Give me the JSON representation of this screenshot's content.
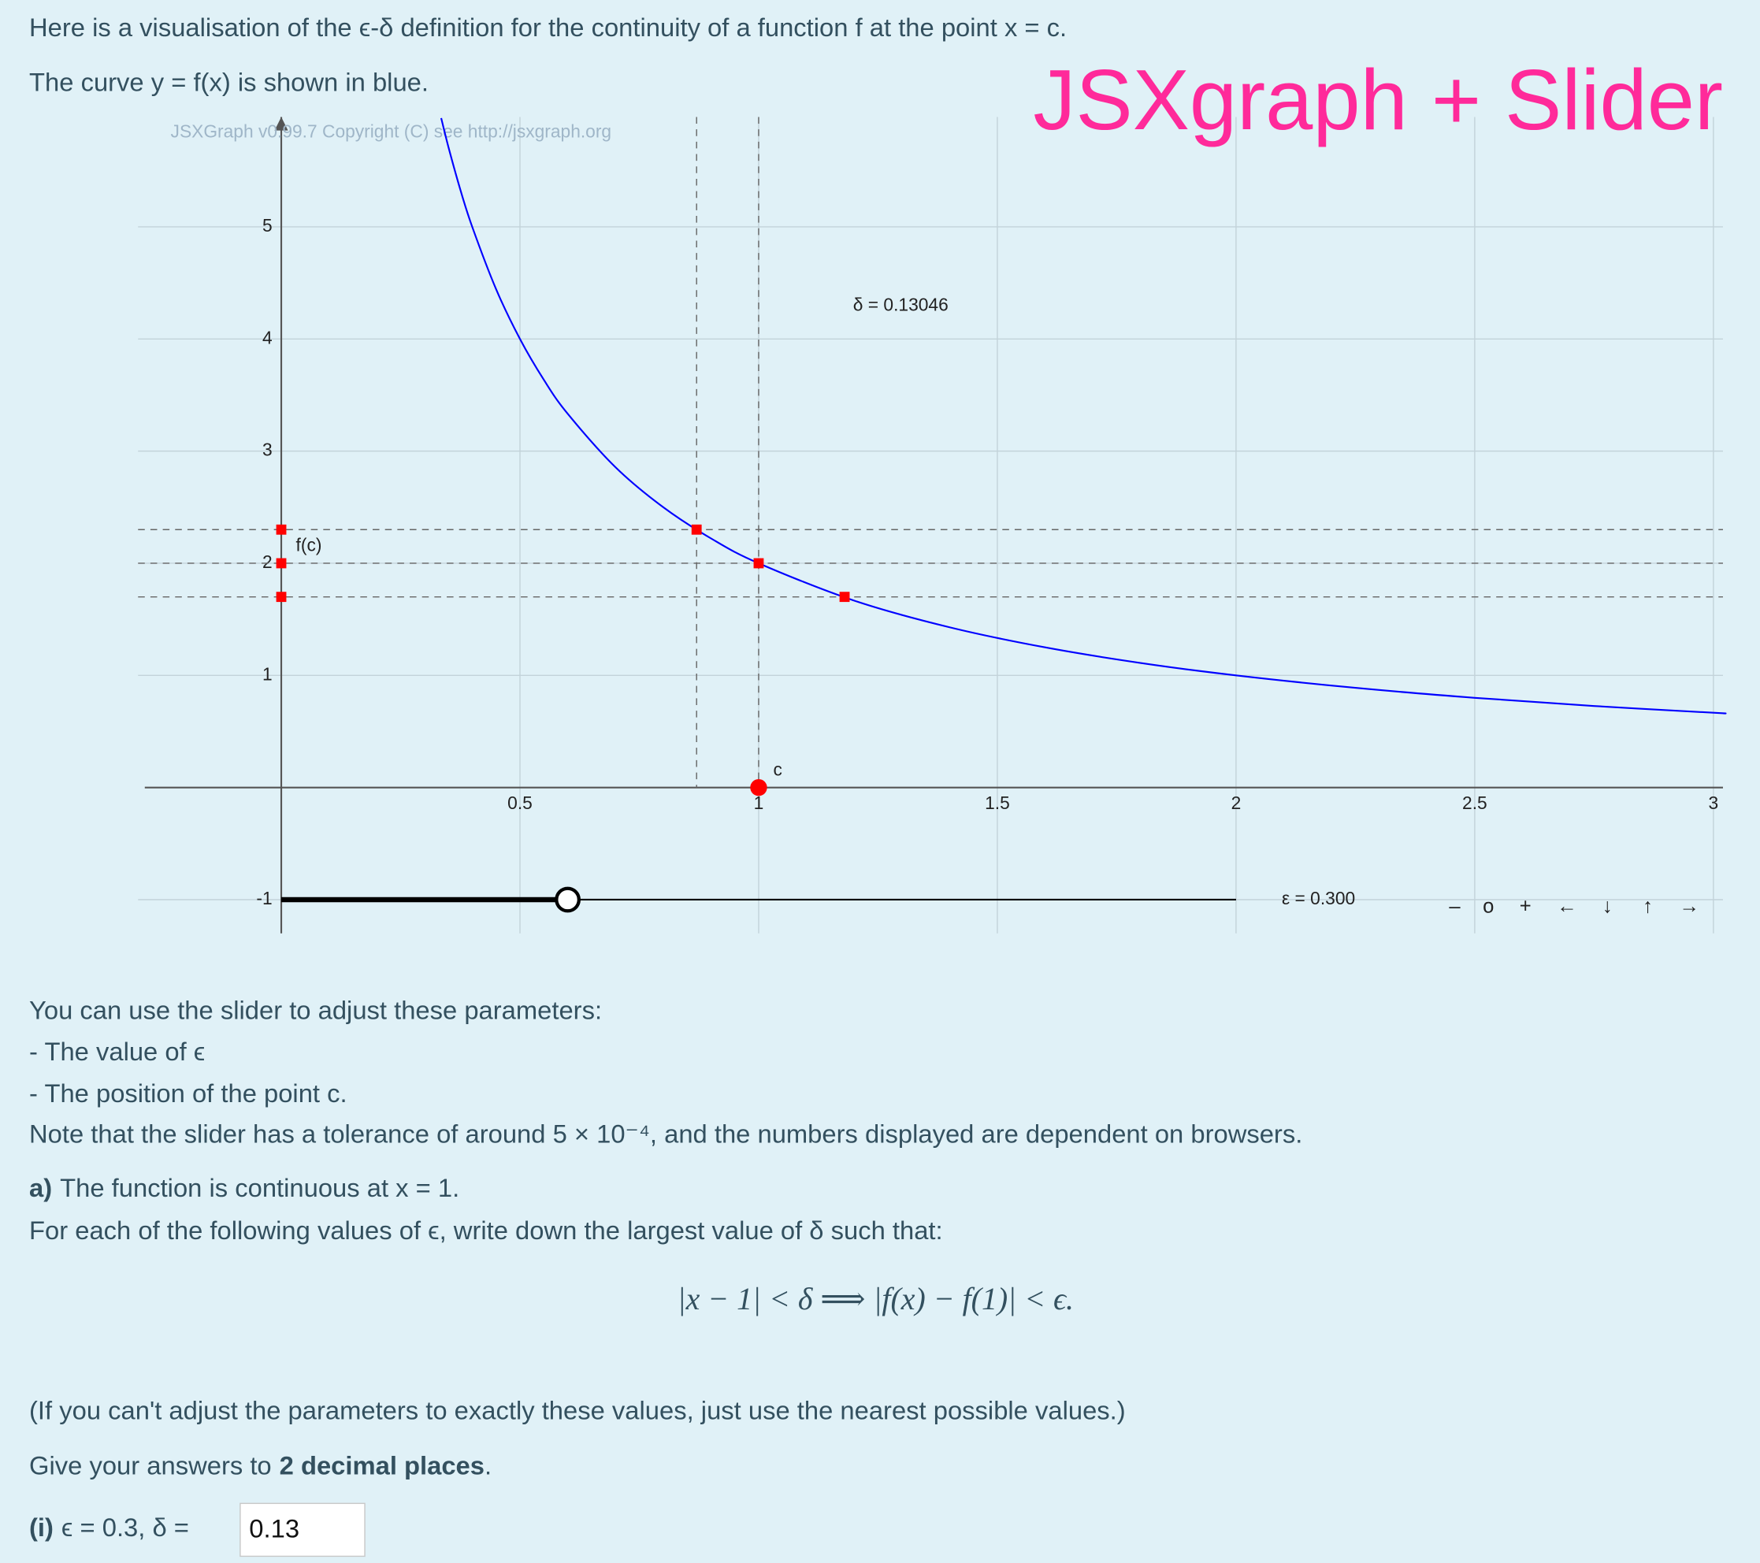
{
  "intro": [
    "Here is a visualisation of the ϵ-δ definition for the continuity of a function f at the point x = c.",
    "The curve y = f(x) is shown in blue."
  ],
  "overlay_title": "JSXgraph + Slider",
  "chart_data": {
    "type": "function-plot",
    "credit": "JSXGraph v0.99.7 Copyright (C) see http://jsxgraph.org",
    "xlim": [
      -0.3,
      3.02
    ],
    "ylim": [
      -1.3,
      5.98
    ],
    "xticks": [
      0.5,
      1,
      1.5,
      2,
      2.5,
      3
    ],
    "yticks": [
      -1,
      1,
      2,
      3,
      4,
      5
    ],
    "grid": true,
    "curve": {
      "color": "#0000ff",
      "x": [
        0.335,
        0.35,
        0.375,
        0.4,
        0.45,
        0.5,
        0.55,
        0.6,
        0.7,
        0.8,
        0.9,
        1,
        1.2,
        1.4,
        1.6,
        1.8,
        2,
        2.25,
        2.5,
        2.75,
        3,
        3.02
      ],
      "y": [
        5.97,
        5.714,
        5.333,
        5,
        4.444,
        4,
        3.636,
        3.333,
        2.857,
        2.5,
        2.222,
        2,
        1.667,
        1.429,
        1.25,
        1.111,
        1,
        0.889,
        0.8,
        0.727,
        0.667,
        0.662
      ]
    },
    "h_lines": [
      2.3,
      2,
      1.7
    ],
    "v_lines": [
      0.87,
      1
    ],
    "points": {
      "color": "#ff0000",
      "x": [
        0.87,
        1,
        1.18,
        0,
        0,
        0
      ],
      "y": [
        2.3,
        2,
        1.7,
        2.3,
        2,
        1.7
      ]
    },
    "c_point": {
      "label": "c",
      "x": 1,
      "y": 0,
      "color": "#ff0000"
    },
    "fc_label": "f(c)",
    "delta_label": "δ = 0.13046",
    "slider": {
      "range": [
        0,
        2
      ],
      "y": -1,
      "value": 0.6,
      "label": "ε = 0.300"
    },
    "nav": [
      "–",
      "o",
      "+",
      "←",
      "↓",
      "↑",
      "→"
    ]
  },
  "instructions": [
    "You can use the slider to adjust these parameters:",
    "- The value of ϵ",
    "- The position of the point c.",
    "Note that the slider has a tolerance of around 5 × 10⁻⁴, and the numbers displayed are dependent on browsers."
  ],
  "part_a": {
    "label": "a)",
    "text": "The function is continuous at x = 1.",
    "prompt": "For each of the following values of ϵ, write down the largest value of δ such that:",
    "formula": "|x − 1| < δ  ⟹  |f(x) − f(1)| < ϵ.",
    "note": "(If you can't adjust the parameters to exactly these values, just use the nearest possible values.)",
    "give_prefix": "Give your answers to",
    "give_bold": "2 decimal places",
    "give_suffix": "."
  },
  "question": {
    "label": "(i)",
    "text": "ϵ = 0.3, δ =",
    "answer": "0.13"
  }
}
